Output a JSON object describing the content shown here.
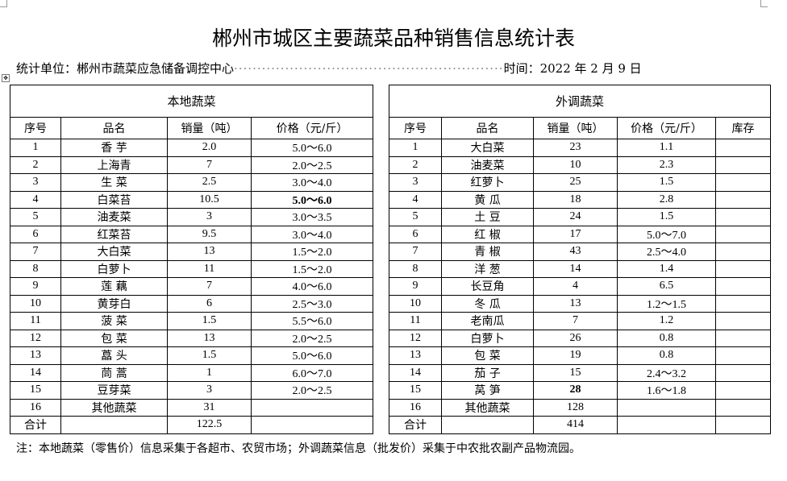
{
  "title": "郴州市城区主要蔬菜品种销售信息统计表",
  "unit_label": "统计单位：郴州市蔬菜应急储备调控中心",
  "date_label": "时间：2022 年 2 月 9 日",
  "local": {
    "header": "本地蔬菜",
    "columns": [
      "序号",
      "品名",
      "销量（吨）",
      "价格（元/斤）"
    ],
    "rows": [
      [
        "1",
        "香 芋",
        "2.0",
        "5.0～6.0"
      ],
      [
        "2",
        "上海青",
        "7",
        "2.0～2.5"
      ],
      [
        "3",
        "生 菜",
        "2.5",
        "3.0～4.0"
      ],
      [
        "4",
        "白菜苔",
        "10.5",
        "5.0～6.0"
      ],
      [
        "5",
        "油麦菜",
        "3",
        "3.0～3.5"
      ],
      [
        "6",
        "红菜苔",
        "9.5",
        "3.0～4.0"
      ],
      [
        "7",
        "大白菜",
        "13",
        "1.5～2.0"
      ],
      [
        "8",
        "白萝卜",
        "11",
        "1.5～2.0"
      ],
      [
        "9",
        "莲 藕",
        "7",
        "4.0～6.0"
      ],
      [
        "10",
        "黄芽白",
        "6",
        "2.5～3.0"
      ],
      [
        "11",
        "菠 菜",
        "1.5",
        "5.5～6.0"
      ],
      [
        "12",
        "包 菜",
        "13",
        "2.0～2.5"
      ],
      [
        "13",
        "藠 头",
        "1.5",
        "5.0～6.0"
      ],
      [
        "14",
        "茼 蒿",
        "1",
        "6.0～7.0"
      ],
      [
        "15",
        "豆芽菜",
        "3",
        "2.0～2.5"
      ],
      [
        "16",
        "其他蔬菜",
        "31",
        ""
      ],
      [
        "合计",
        "",
        "122.5",
        ""
      ]
    ]
  },
  "imported": {
    "header": "外调蔬菜",
    "columns": [
      "序号",
      "品名",
      "销量（吨）",
      "价格（元/斤）",
      "库存"
    ],
    "rows": [
      [
        "1",
        "大白菜",
        "23",
        "1.1",
        ""
      ],
      [
        "2",
        "油麦菜",
        "10",
        "2.3",
        ""
      ],
      [
        "3",
        "红萝卜",
        "25",
        "1.5",
        ""
      ],
      [
        "4",
        "黄 瓜",
        "18",
        "2.8",
        ""
      ],
      [
        "5",
        "土 豆",
        "24",
        "1.5",
        ""
      ],
      [
        "6",
        "红 椒",
        "17",
        "5.0～7.0",
        ""
      ],
      [
        "7",
        "青 椒",
        "43",
        "2.5～4.0",
        ""
      ],
      [
        "8",
        "洋 葱",
        "14",
        "1.4",
        ""
      ],
      [
        "9",
        "长豆角",
        "4",
        "6.5",
        ""
      ],
      [
        "10",
        "冬 瓜",
        "13",
        "1.2～1.5",
        ""
      ],
      [
        "11",
        "老南瓜",
        "7",
        "1.2",
        ""
      ],
      [
        "12",
        "白萝卜",
        "26",
        "0.8",
        ""
      ],
      [
        "13",
        "包 菜",
        "19",
        "0.8",
        ""
      ],
      [
        "14",
        "茄 子",
        "15",
        "2.4～3.2",
        ""
      ],
      [
        "15",
        "莴 笋",
        "28",
        "1.6～1.8",
        ""
      ],
      [
        "16",
        "其他蔬菜",
        "128",
        "",
        ""
      ],
      [
        "合计",
        "",
        "414",
        "",
        ""
      ]
    ]
  },
  "note": "注：本地蔬菜（零售价）信息采集于各超市、农贸市场；外调蔬菜信息（批发价）采集于中农批农副产品物流园。"
}
